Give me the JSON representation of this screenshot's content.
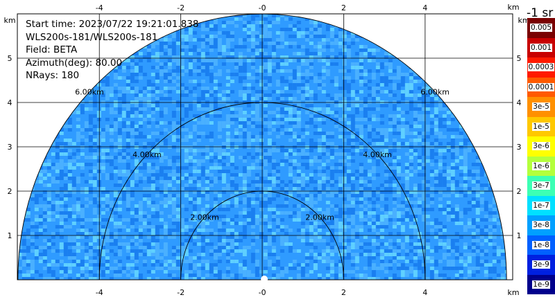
{
  "info": {
    "start_time": "Start time: 2023/07/22 19:21:01.838",
    "instrument": "WLS200s-181/WLS200s-181",
    "field": "Field: BETA",
    "azimuth": "Azimuth(deg): 80.00",
    "nrays": "NRays: 180"
  },
  "axes": {
    "unit": "km",
    "x_ticks": [
      "-4",
      "-2",
      "-0",
      "2",
      "4"
    ],
    "y_ticks": [
      "1",
      "2",
      "3",
      "4",
      "5"
    ]
  },
  "range_rings": [
    {
      "label": "2.00km"
    },
    {
      "label": "4.00km"
    },
    {
      "label": "6.00km"
    }
  ],
  "colorbar": {
    "title": "-1 sr",
    "labels": [
      "0.005",
      "0.001",
      "0.0003",
      "0.0001",
      "3e-5",
      "1e-5",
      "3e-6",
      "1e-6",
      "3e-7",
      "1e-7",
      "3e-8",
      "1e-8",
      "3e-9",
      "1e-9"
    ],
    "colors": [
      "#7a0000",
      "#c80000",
      "#ff1a00",
      "#ff5a00",
      "#ff9000",
      "#ffc800",
      "#ffff00",
      "#b4ff3c",
      "#3cffb4",
      "#00e0ff",
      "#00a0ff",
      "#0060ff",
      "#0020e0",
      "#00008c"
    ]
  },
  "plot_colors": {
    "base": "#2f9bff",
    "light": "#4ab0ff",
    "dark": "#1a7ff0",
    "cyan": "#5fd0ff"
  }
}
